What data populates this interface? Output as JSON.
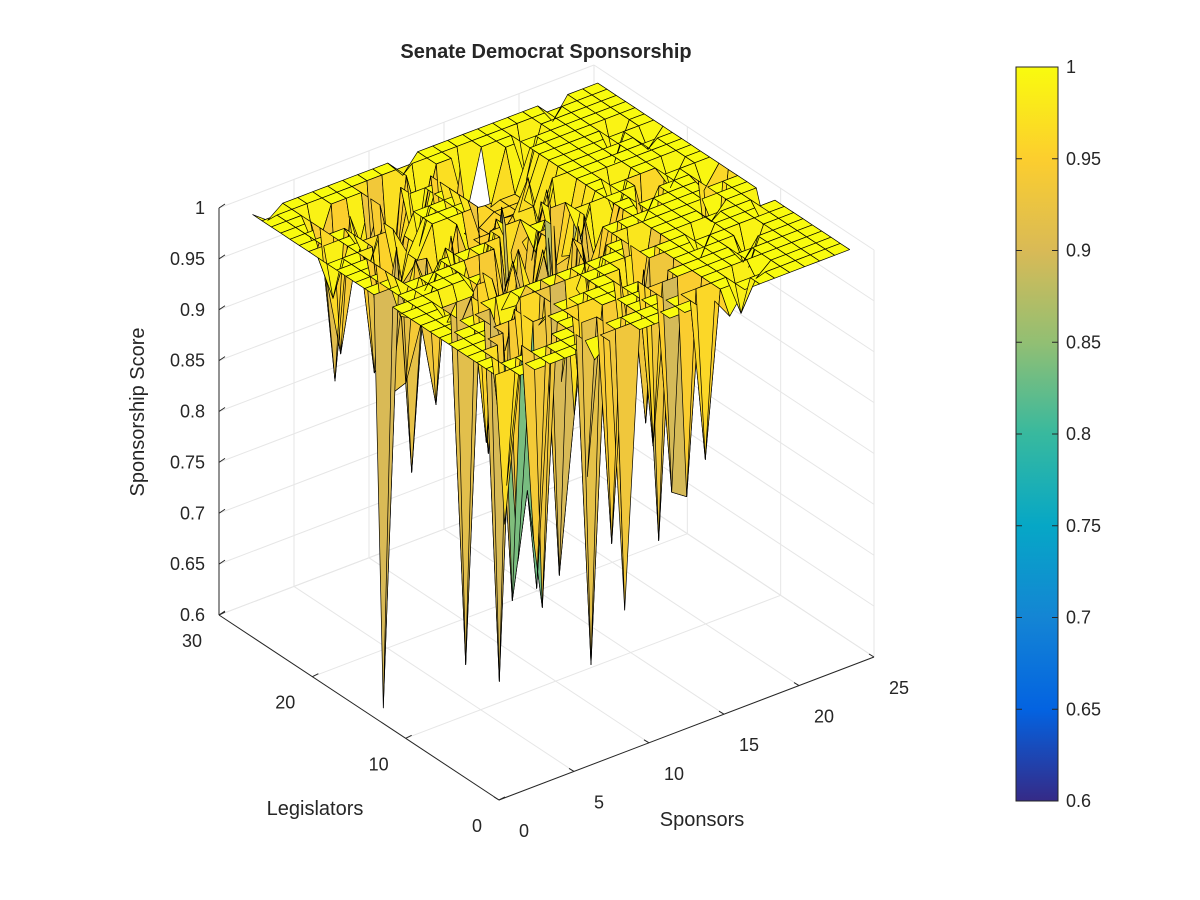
{
  "chart_data": {
    "type": "surface",
    "title": "Senate Democrat Sponsorship",
    "xlabel": "Sponsors",
    "ylabel": "Legislators",
    "zlabel": "Sponsorship Score",
    "xlim": [
      0,
      25
    ],
    "ylim": [
      0,
      30
    ],
    "zlim": [
      0.6,
      1
    ],
    "x_ticks": [
      "0",
      "5",
      "10",
      "15",
      "20",
      "25"
    ],
    "y_ticks": [
      "0",
      "10",
      "20",
      "30"
    ],
    "z_ticks": [
      "0.6",
      "0.65",
      "0.7",
      "0.75",
      "0.8",
      "0.85",
      "0.9",
      "0.95",
      "1"
    ],
    "colorbar": {
      "limits": [
        0.6,
        1
      ],
      "ticks": [
        "0.6",
        "0.65",
        "0.7",
        "0.75",
        "0.8",
        "0.85",
        "0.9",
        "0.95",
        "1"
      ],
      "colormap": "parula",
      "placement": "right"
    },
    "grid": true,
    "surface_extent": {
      "sponsors": [
        1,
        24
      ],
      "legislators": [
        1,
        28
      ]
    },
    "score_range_approx": [
      0.6,
      1.0
    ],
    "notable_low_points": [
      {
        "sponsor": 1,
        "legislator": 14,
        "score": 0.6
      },
      {
        "sponsor": 4,
        "legislator": 10,
        "score": 0.65
      },
      {
        "sponsor": 5,
        "legislator": 8,
        "score": 0.64
      },
      {
        "sponsor": 8,
        "legislator": 3,
        "score": 0.67
      },
      {
        "sponsor": 9,
        "legislator": 1,
        "score": 0.73
      },
      {
        "sponsor": 10,
        "legislator": 12,
        "score": 0.72
      },
      {
        "sponsor": 12,
        "legislator": 20,
        "score": 0.77
      },
      {
        "sponsor": 14,
        "legislator": 16,
        "score": 0.74
      },
      {
        "sponsor": 16,
        "legislator": 10,
        "score": 0.82
      },
      {
        "sponsor": 20,
        "legislator": 16,
        "score": 0.84
      },
      {
        "sponsor": 23,
        "legislator": 14,
        "score": 0.86
      }
    ]
  },
  "colors": {
    "parula": [
      "#352a87",
      "#0363e1",
      "#1485d4",
      "#06a7c6",
      "#38b99e",
      "#92bf73",
      "#d9ba56",
      "#fcce2e",
      "#f9fb0e"
    ],
    "edge": "#000000",
    "axis": "#262626",
    "grid": "#e6e6e6"
  }
}
